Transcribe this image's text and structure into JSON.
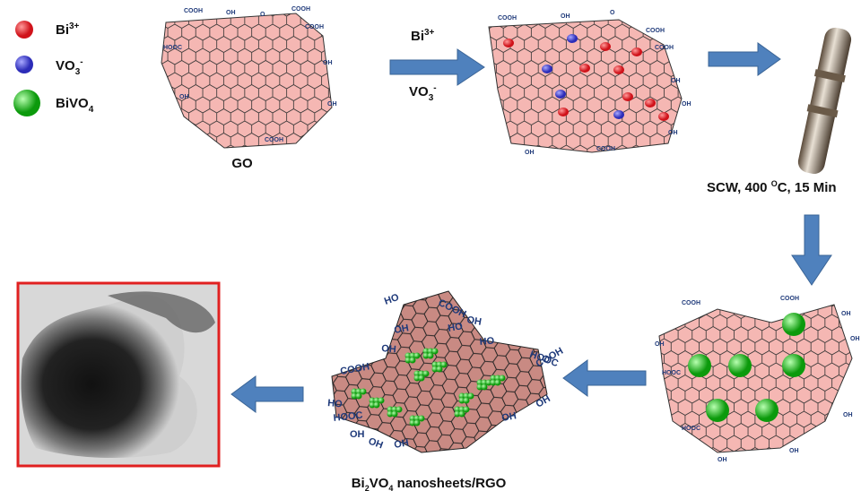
{
  "legend": [
    {
      "base": "Bi",
      "sup": "3+"
    },
    {
      "base": "VO",
      "sub": "3",
      "sup": "-"
    },
    {
      "base": "BiVO",
      "sub": "4"
    }
  ],
  "go_label": "GO",
  "arrow_label_top": {
    "base": "Bi",
    "sup": "3+"
  },
  "arrow_label_bottom": {
    "base": "VO",
    "sub": "3",
    "sup": "-"
  },
  "condition": {
    "pre": "SCW, 400 ",
    "sup": "O",
    "post": "C, 15 Min"
  },
  "product": {
    "a": "Bi",
    "sub1": "2",
    "b": "VO",
    "sub2": "4",
    "c": " nanosheets/RGO"
  },
  "groups": [
    "COOH",
    "OH",
    "HOOC",
    "HO",
    "O"
  ]
}
